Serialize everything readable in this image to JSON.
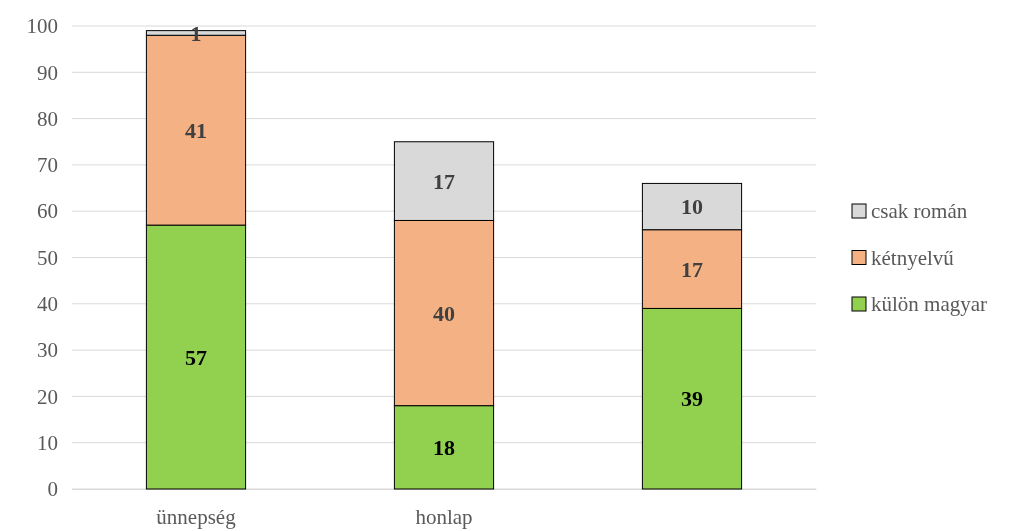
{
  "chart_data": {
    "type": "bar",
    "stacked": true,
    "categories": [
      "ünnepség",
      "honlap",
      null
    ],
    "series": [
      {
        "name": "külön magyar",
        "color": "#92d050",
        "values": [
          57,
          18,
          39
        ]
      },
      {
        "name": "kétnyelvű",
        "color": "#f4b183",
        "values": [
          41,
          40,
          17
        ]
      },
      {
        "name": "csak román",
        "color": "#d9d9d9",
        "values": [
          1,
          17,
          10
        ]
      }
    ],
    "ylim": [
      0,
      100
    ],
    "yticks": [
      0,
      10,
      20,
      30,
      40,
      50,
      60,
      70,
      80,
      90,
      100
    ],
    "grid": "y",
    "legend": "right",
    "data_labels": true
  }
}
